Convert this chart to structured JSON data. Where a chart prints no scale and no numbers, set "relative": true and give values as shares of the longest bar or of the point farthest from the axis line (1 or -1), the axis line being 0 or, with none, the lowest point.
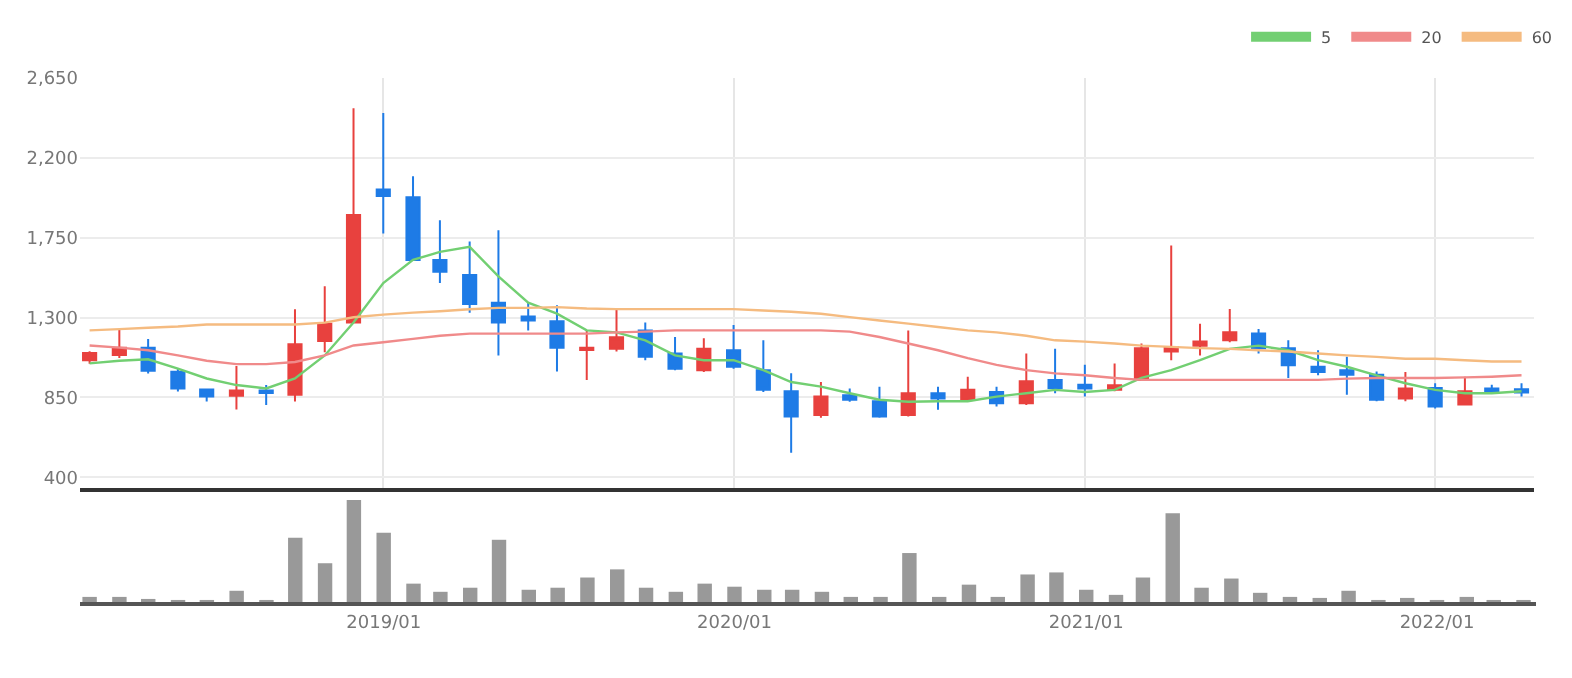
{
  "chart_data": [
    {
      "type": "candlestick",
      "x": [
        "2018-03",
        "2018-04",
        "2018-05",
        "2018-06",
        "2018-07",
        "2018-08",
        "2018-09",
        "2018-10",
        "2018-11",
        "2018-12",
        "2019-01",
        "2019-02",
        "2019-03",
        "2019-04",
        "2019-05",
        "2019-06",
        "2019-07",
        "2019-08",
        "2019-09",
        "2019-10",
        "2019-11",
        "2019-12",
        "2020-01",
        "2020-02",
        "2020-03",
        "2020-04",
        "2020-05",
        "2020-06",
        "2020-07",
        "2020-08",
        "2020-09",
        "2020-10",
        "2020-11",
        "2020-12",
        "2021-01",
        "2021-02",
        "2021-03",
        "2021-04",
        "2021-05",
        "2021-06",
        "2021-07",
        "2021-08",
        "2021-09",
        "2021-10",
        "2021-11",
        "2021-12",
        "2022-01",
        "2022-02",
        "2022-03",
        "2022-04"
      ],
      "ohlc": [
        [
          1060,
          1110,
          1040,
          1100
        ],
        [
          1090,
          1235,
          1072,
          1130
        ],
        [
          1130,
          1180,
          985,
          1000
        ],
        [
          995,
          1013,
          883,
          900
        ],
        [
          895,
          900,
          827,
          855
        ],
        [
          860,
          1027,
          783,
          890
        ],
        [
          890,
          920,
          808,
          875
        ],
        [
          865,
          1347,
          827,
          1150
        ],
        [
          1168,
          1477,
          1105,
          1265
        ],
        [
          1272,
          2479,
          1272,
          1878
        ],
        [
          2022,
          2453,
          1774,
          1985
        ],
        [
          1978,
          2097,
          1625,
          1625
        ],
        [
          1625,
          1848,
          1495,
          1558
        ],
        [
          1540,
          1729,
          1328,
          1376
        ],
        [
          1384,
          1792,
          1087,
          1272
        ],
        [
          1306,
          1384,
          1228,
          1284
        ],
        [
          1280,
          1370,
          997,
          1130
        ],
        [
          1117,
          1228,
          948,
          1130
        ],
        [
          1124,
          1348,
          1109,
          1190
        ],
        [
          1228,
          1273,
          1060,
          1079
        ],
        [
          1098,
          1191,
          1004,
          1012
        ],
        [
          1004,
          1184,
          993,
          1124
        ],
        [
          1116,
          1258,
          1012,
          1023
        ],
        [
          1004,
          1172,
          881,
          893
        ],
        [
          885,
          986,
          538,
          743
        ],
        [
          751,
          937,
          736,
          855
        ],
        [
          863,
          900,
          826,
          837
        ],
        [
          829,
          911,
          736,
          743
        ],
        [
          751,
          1228,
          743,
          874
        ],
        [
          874,
          911,
          781,
          844
        ],
        [
          837,
          967,
          826,
          893
        ],
        [
          881,
          911,
          799,
          818
        ],
        [
          818,
          1098,
          807,
          941
        ],
        [
          948,
          1124,
          874,
          904
        ],
        [
          922,
          1034,
          855,
          900
        ],
        [
          893,
          1042,
          885,
          919
        ],
        [
          949,
          1154,
          949,
          1128
        ],
        [
          1109,
          1706,
          1060,
          1135
        ],
        [
          1142,
          1266,
          1087,
          1165
        ],
        [
          1172,
          1348,
          1161,
          1217
        ],
        [
          1210,
          1236,
          1098,
          1128
        ],
        [
          1128,
          1172,
          960,
          1031
        ],
        [
          1023,
          1116,
          975,
          993
        ],
        [
          1004,
          1079,
          866,
          978
        ],
        [
          978,
          997,
          829,
          837
        ],
        [
          844,
          993,
          829,
          900
        ],
        [
          904,
          930,
          788,
          799
        ],
        [
          811,
          967,
          807,
          885
        ],
        [
          900,
          922,
          874,
          881
        ],
        [
          896,
          930,
          855,
          878
        ]
      ],
      "colors": [
        "#e8413e",
        "#e8413e",
        "#1e7be6",
        "#1e7be6",
        "#1e7be6",
        "#e8413e",
        "#1e7be6",
        "#e8413e",
        "#e8413e",
        "#e8413e",
        "#1e7be6",
        "#1e7be6",
        "#1e7be6",
        "#1e7be6",
        "#1e7be6",
        "#1e7be6",
        "#1e7be6",
        "#e8413e",
        "#e8413e",
        "#1e7be6",
        "#1e7be6",
        "#e8413e",
        "#1e7be6",
        "#1e7be6",
        "#1e7be6",
        "#e8413e",
        "#1e7be6",
        "#1e7be6",
        "#e8413e",
        "#1e7be6",
        "#e8413e",
        "#1e7be6",
        "#e8413e",
        "#1e7be6",
        "#1e7be6",
        "#e8413e",
        "#e8413e",
        "#e8413e",
        "#e8413e",
        "#e8413e",
        "#1e7be6",
        "#1e7be6",
        "#1e7be6",
        "#1e7be6",
        "#1e7be6",
        "#e8413e",
        "#1e7be6",
        "#e8413e",
        "#1e7be6",
        "#1e7be6"
      ],
      "series": [
        {
          "type": "line",
          "name": "5",
          "color": "#72cf72",
          "values": [
            1042,
            1057,
            1065,
            1013,
            957,
            920,
            901,
            957,
            1087,
            1272,
            1495,
            1625,
            1670,
            1699,
            1532,
            1384,
            1322,
            1228,
            1217,
            1172,
            1087,
            1060,
            1060,
            1004,
            937,
            911,
            874,
            837,
            826,
            829,
            829,
            855,
            874,
            893,
            881,
            893,
            960,
            1004,
            1060,
            1124,
            1142,
            1116,
            1060,
            1023,
            975,
            930,
            893,
            874,
            874,
            885
          ]
        },
        {
          "type": "line",
          "name": "20",
          "color": "#f08a8a",
          "values": [
            1143,
            1131,
            1116,
            1087,
            1057,
            1038,
            1038,
            1050,
            1087,
            1143,
            1161,
            1180,
            1198,
            1210,
            1210,
            1210,
            1210,
            1210,
            1217,
            1221,
            1228,
            1228,
            1228,
            1228,
            1228,
            1228,
            1221,
            1191,
            1154,
            1116,
            1072,
            1034,
            1004,
            986,
            975,
            960,
            949,
            949,
            949,
            949,
            949,
            949,
            949,
            956,
            960,
            960,
            960,
            963,
            967,
            975
          ]
        },
        {
          "type": "line",
          "name": "60",
          "color": "#f5bb80",
          "values": [
            1228,
            1235,
            1243,
            1250,
            1261,
            1261,
            1261,
            1261,
            1272,
            1302,
            1317,
            1328,
            1336,
            1347,
            1355,
            1355,
            1359,
            1351,
            1348,
            1348,
            1348,
            1348,
            1348,
            1340,
            1333,
            1322,
            1303,
            1284,
            1266,
            1247,
            1228,
            1217,
            1198,
            1172,
            1165,
            1154,
            1142,
            1135,
            1128,
            1124,
            1116,
            1109,
            1098,
            1087,
            1079,
            1068,
            1068,
            1060,
            1053,
            1053
          ]
        }
      ],
      "xlim": [
        "2018-02-19",
        "2022-04-14"
      ],
      "xticks": [
        {
          "value": "2019-01",
          "label": null
        },
        {
          "value": "2020-01",
          "label": null
        },
        {
          "value": "2021-01",
          "label": null
        },
        {
          "value": "2022-01",
          "label": null
        }
      ],
      "ylim": [
        340,
        2650
      ],
      "yticks": [
        400,
        850,
        {
          "value": 1300,
          "label": "1,300"
        },
        {
          "value": 1750,
          "label": "1,750"
        },
        {
          "value": 2200,
          "label": "2,200"
        },
        {
          "value": 2650,
          "label": "2,650"
        }
      ],
      "grid": true,
      "legend": "top right",
      "marker": "none",
      "line_style": "solid",
      "tick_labels": "y"
    },
    {
      "type": "bar",
      "relative": true,
      "color": "#999999",
      "x": [
        "2018-03",
        "2018-04",
        "2018-05",
        "2018-06",
        "2018-07",
        "2018-08",
        "2018-09",
        "2018-10",
        "2018-11",
        "2018-12",
        "2019-01",
        "2019-02",
        "2019-03",
        "2019-04",
        "2019-05",
        "2019-06",
        "2019-07",
        "2019-08",
        "2019-09",
        "2019-10",
        "2019-11",
        "2019-12",
        "2020-01",
        "2020-02",
        "2020-03",
        "2020-04",
        "2020-05",
        "2020-06",
        "2020-07",
        "2020-08",
        "2020-09",
        "2020-10",
        "2020-11",
        "2020-12",
        "2021-01",
        "2021-02",
        "2021-03",
        "2021-04",
        "2021-05",
        "2021-06",
        "2021-07",
        "2021-08",
        "2021-09",
        "2021-10",
        "2021-11",
        "2021-12",
        "2022-01",
        "2022-02",
        "2022-03",
        "2022-04"
      ],
      "values": [
        0.05,
        0.05,
        0.03,
        0.02,
        0.02,
        0.11,
        0.02,
        0.63,
        0.38,
        1,
        0.68,
        0.18,
        0.1,
        0.14,
        0.61,
        0.12,
        0.14,
        0.24,
        0.32,
        0.14,
        0.1,
        0.18,
        0.15,
        0.12,
        0.12,
        0.1,
        0.05,
        0.05,
        0.48,
        0.05,
        0.17,
        0.05,
        0.27,
        0.29,
        0.12,
        0.07,
        0.24,
        0.87,
        0.14,
        0.23,
        0.09,
        0.05,
        0.04,
        0.11,
        0.02,
        0.04,
        0.02,
        0.05,
        0.02,
        0.02
      ],
      "xlim": [
        "2018-02-19",
        "2022-04-14"
      ],
      "xticks": [
        {
          "value": "2019-01",
          "label": "2019/01"
        },
        {
          "value": "2020-01",
          "label": "2020/01"
        },
        {
          "value": "2021-01",
          "label": "2021/01"
        },
        {
          "value": "2022-01",
          "label": "2022/01"
        }
      ],
      "tick_labels": "x"
    }
  ]
}
